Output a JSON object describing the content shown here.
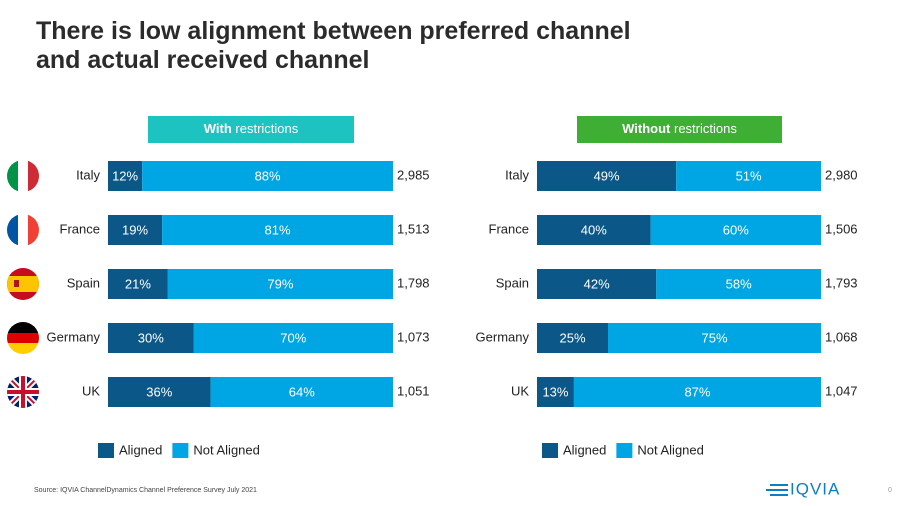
{
  "title": "There is low alignment between preferred channel and actual received channel",
  "source": "Source: IQVIA ChannelDynamics Channel Preference Survey July 2021",
  "logo": "IQVIA",
  "page_number": "0",
  "chart_data": [
    {
      "type": "stacked-bar-horizontal",
      "title": "With restrictions",
      "header_color": "#1cc3c1",
      "categories": [
        "Italy",
        "France",
        "Spain",
        "Germany",
        "UK"
      ],
      "series": [
        {
          "name": "Aligned",
          "color": "#0b5888",
          "values": [
            12,
            19,
            21,
            30,
            36
          ],
          "value_labels": [
            "12%",
            "19%",
            "21%",
            "30%",
            "36%"
          ]
        },
        {
          "name": "Not Aligned",
          "color": "#00a5e3",
          "values": [
            88,
            81,
            79,
            70,
            64
          ],
          "value_labels": [
            "88%",
            "81%",
            "79%",
            "70%",
            "64%"
          ]
        }
      ],
      "sample_sizes": [
        "2,985",
        "1,513",
        "1,798",
        "1,073",
        "1,051"
      ],
      "xlim": [
        0,
        100
      ]
    },
    {
      "type": "stacked-bar-horizontal",
      "title": "Without restrictions",
      "header_color": "#3fae35",
      "categories": [
        "Italy",
        "France",
        "Spain",
        "Germany",
        "UK"
      ],
      "series": [
        {
          "name": "Aligned",
          "color": "#0b5888",
          "values": [
            49,
            40,
            42,
            25,
            13
          ],
          "value_labels": [
            "49%",
            "40%",
            "42%",
            "25%",
            "13%"
          ]
        },
        {
          "name": "Not Aligned",
          "color": "#00a5e3",
          "values": [
            51,
            60,
            58,
            75,
            87
          ],
          "value_labels": [
            "51%",
            "60%",
            "58%",
            "75%",
            "87%"
          ]
        }
      ],
      "sample_sizes": [
        "2,980",
        "1,506",
        "1,793",
        "1,068",
        "1,047"
      ],
      "xlim": [
        0,
        100
      ]
    }
  ]
}
